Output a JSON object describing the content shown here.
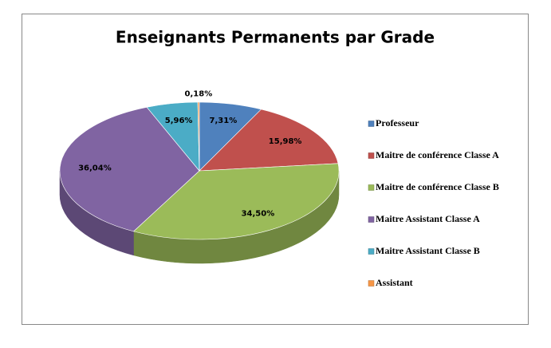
{
  "chart_data": {
    "type": "pie",
    "title": "Enseignants Permanents par Grade",
    "categories": [
      "Professeur",
      "Maitre de conférence Classe A",
      "Maitre de conférence Classe B",
      "Maitre Assistant Classe A",
      "Maitre Assistant Classe B",
      "Assistant"
    ],
    "values": [
      7.31,
      15.98,
      34.5,
      36.04,
      5.96,
      0.18
    ],
    "value_labels": [
      "7,31%",
      "15,98%",
      "34,50%",
      "36,04%",
      "5,96%",
      "0,18%"
    ],
    "colors": [
      "#4f81bd",
      "#c0504d",
      "#9bbb59",
      "#8064a2",
      "#4bacc6",
      "#f79646"
    ],
    "legend": "right"
  }
}
